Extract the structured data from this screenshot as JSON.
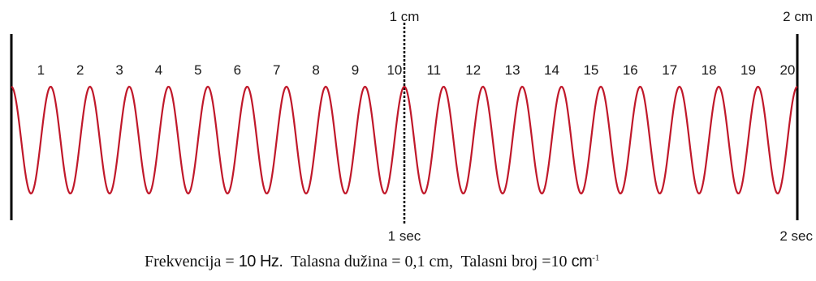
{
  "scale_top": {
    "mid": "1 cm",
    "end": "2 cm"
  },
  "scale_bottom": {
    "mid": "1 sec",
    "end": "2 sec"
  },
  "cycle_labels": [
    "1",
    "2",
    "3",
    "4",
    "5",
    "6",
    "7",
    "8",
    "9",
    "10",
    "11",
    "12",
    "13",
    "14",
    "15",
    "16",
    "17",
    "18",
    "19",
    "20"
  ],
  "wave": {
    "cycles": 20,
    "color": "#c0182a"
  },
  "caption": {
    "freq_label": "Frekvencija = ",
    "freq_value": "10 Hz.",
    "wavelength": "  Talasna dužina = 0,1 cm,",
    "wavenumber": "  Talasni broj =10 ",
    "unit": "cm",
    "exp": "-1"
  }
}
